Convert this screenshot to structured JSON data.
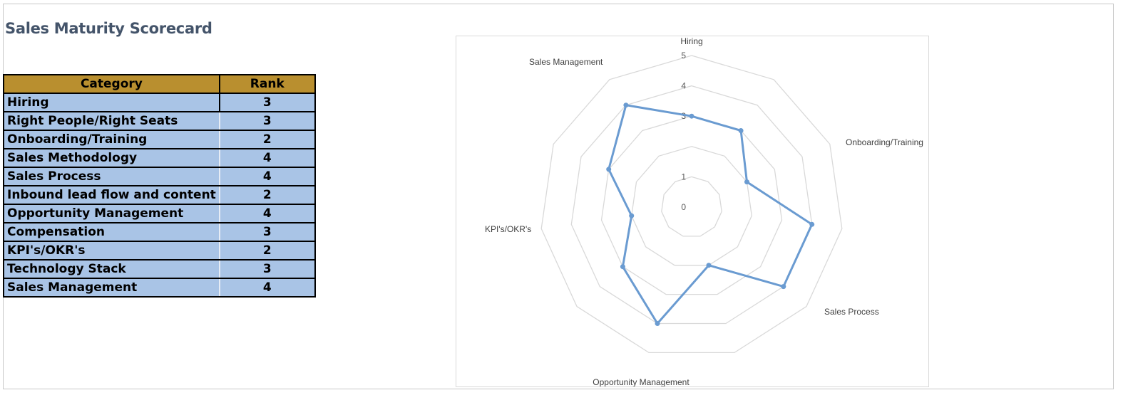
{
  "title": "Sales Maturity Scorecard",
  "table": {
    "headers": {
      "category": "Category",
      "rank": "Rank"
    },
    "rows": [
      {
        "category": "Hiring",
        "rank": "3"
      },
      {
        "category": "Right People/Right Seats",
        "rank": "3"
      },
      {
        "category": "Onboarding/Training",
        "rank": "2"
      },
      {
        "category": "Sales Methodology",
        "rank": "4"
      },
      {
        "category": "Sales Process",
        "rank": "4"
      },
      {
        "category": "Inbound lead flow and content",
        "rank": "2"
      },
      {
        "category": "Opportunity Management",
        "rank": "4"
      },
      {
        "category": "Compensation",
        "rank": "3"
      },
      {
        "category": "KPI's/OKR's",
        "rank": "2"
      },
      {
        "category": "Technology Stack",
        "rank": "3"
      },
      {
        "category": "Sales Management",
        "rank": "4"
      }
    ]
  },
  "chart_data": {
    "type": "radar",
    "categories": [
      "Hiring",
      "Right People/Right Seats",
      "Onboarding/Training",
      "Sales Methodology",
      "Sales Process",
      "Inbound lead flow and content",
      "Opportunity Management",
      "Compensation",
      "KPI's/OKR's",
      "Technology Stack",
      "Sales Management"
    ],
    "visible_category_labels": [
      "Hiring",
      "",
      "Onboarding/Training",
      "",
      "Sales Process",
      "",
      "Opportunity Management",
      "",
      "KPI's/OKR's",
      "",
      "Sales Management"
    ],
    "series": [
      {
        "values": [
          3,
          3,
          2,
          4,
          4,
          2,
          4,
          3,
          2,
          3,
          4
        ],
        "color": "#6a9bd1"
      }
    ],
    "rlim": [
      0,
      5
    ],
    "ticks": [
      0,
      1,
      2,
      3,
      4,
      5
    ],
    "tick_labels": [
      "0",
      "1",
      "",
      "3",
      "4",
      "5"
    ],
    "grid": true,
    "grid_color": "#d9d9d9",
    "legend": "none"
  },
  "colors": {
    "header_bg": "#b98f2f",
    "row_bg": "#a9c4e6",
    "title": "#44546a",
    "series": "#6a9bd1"
  }
}
